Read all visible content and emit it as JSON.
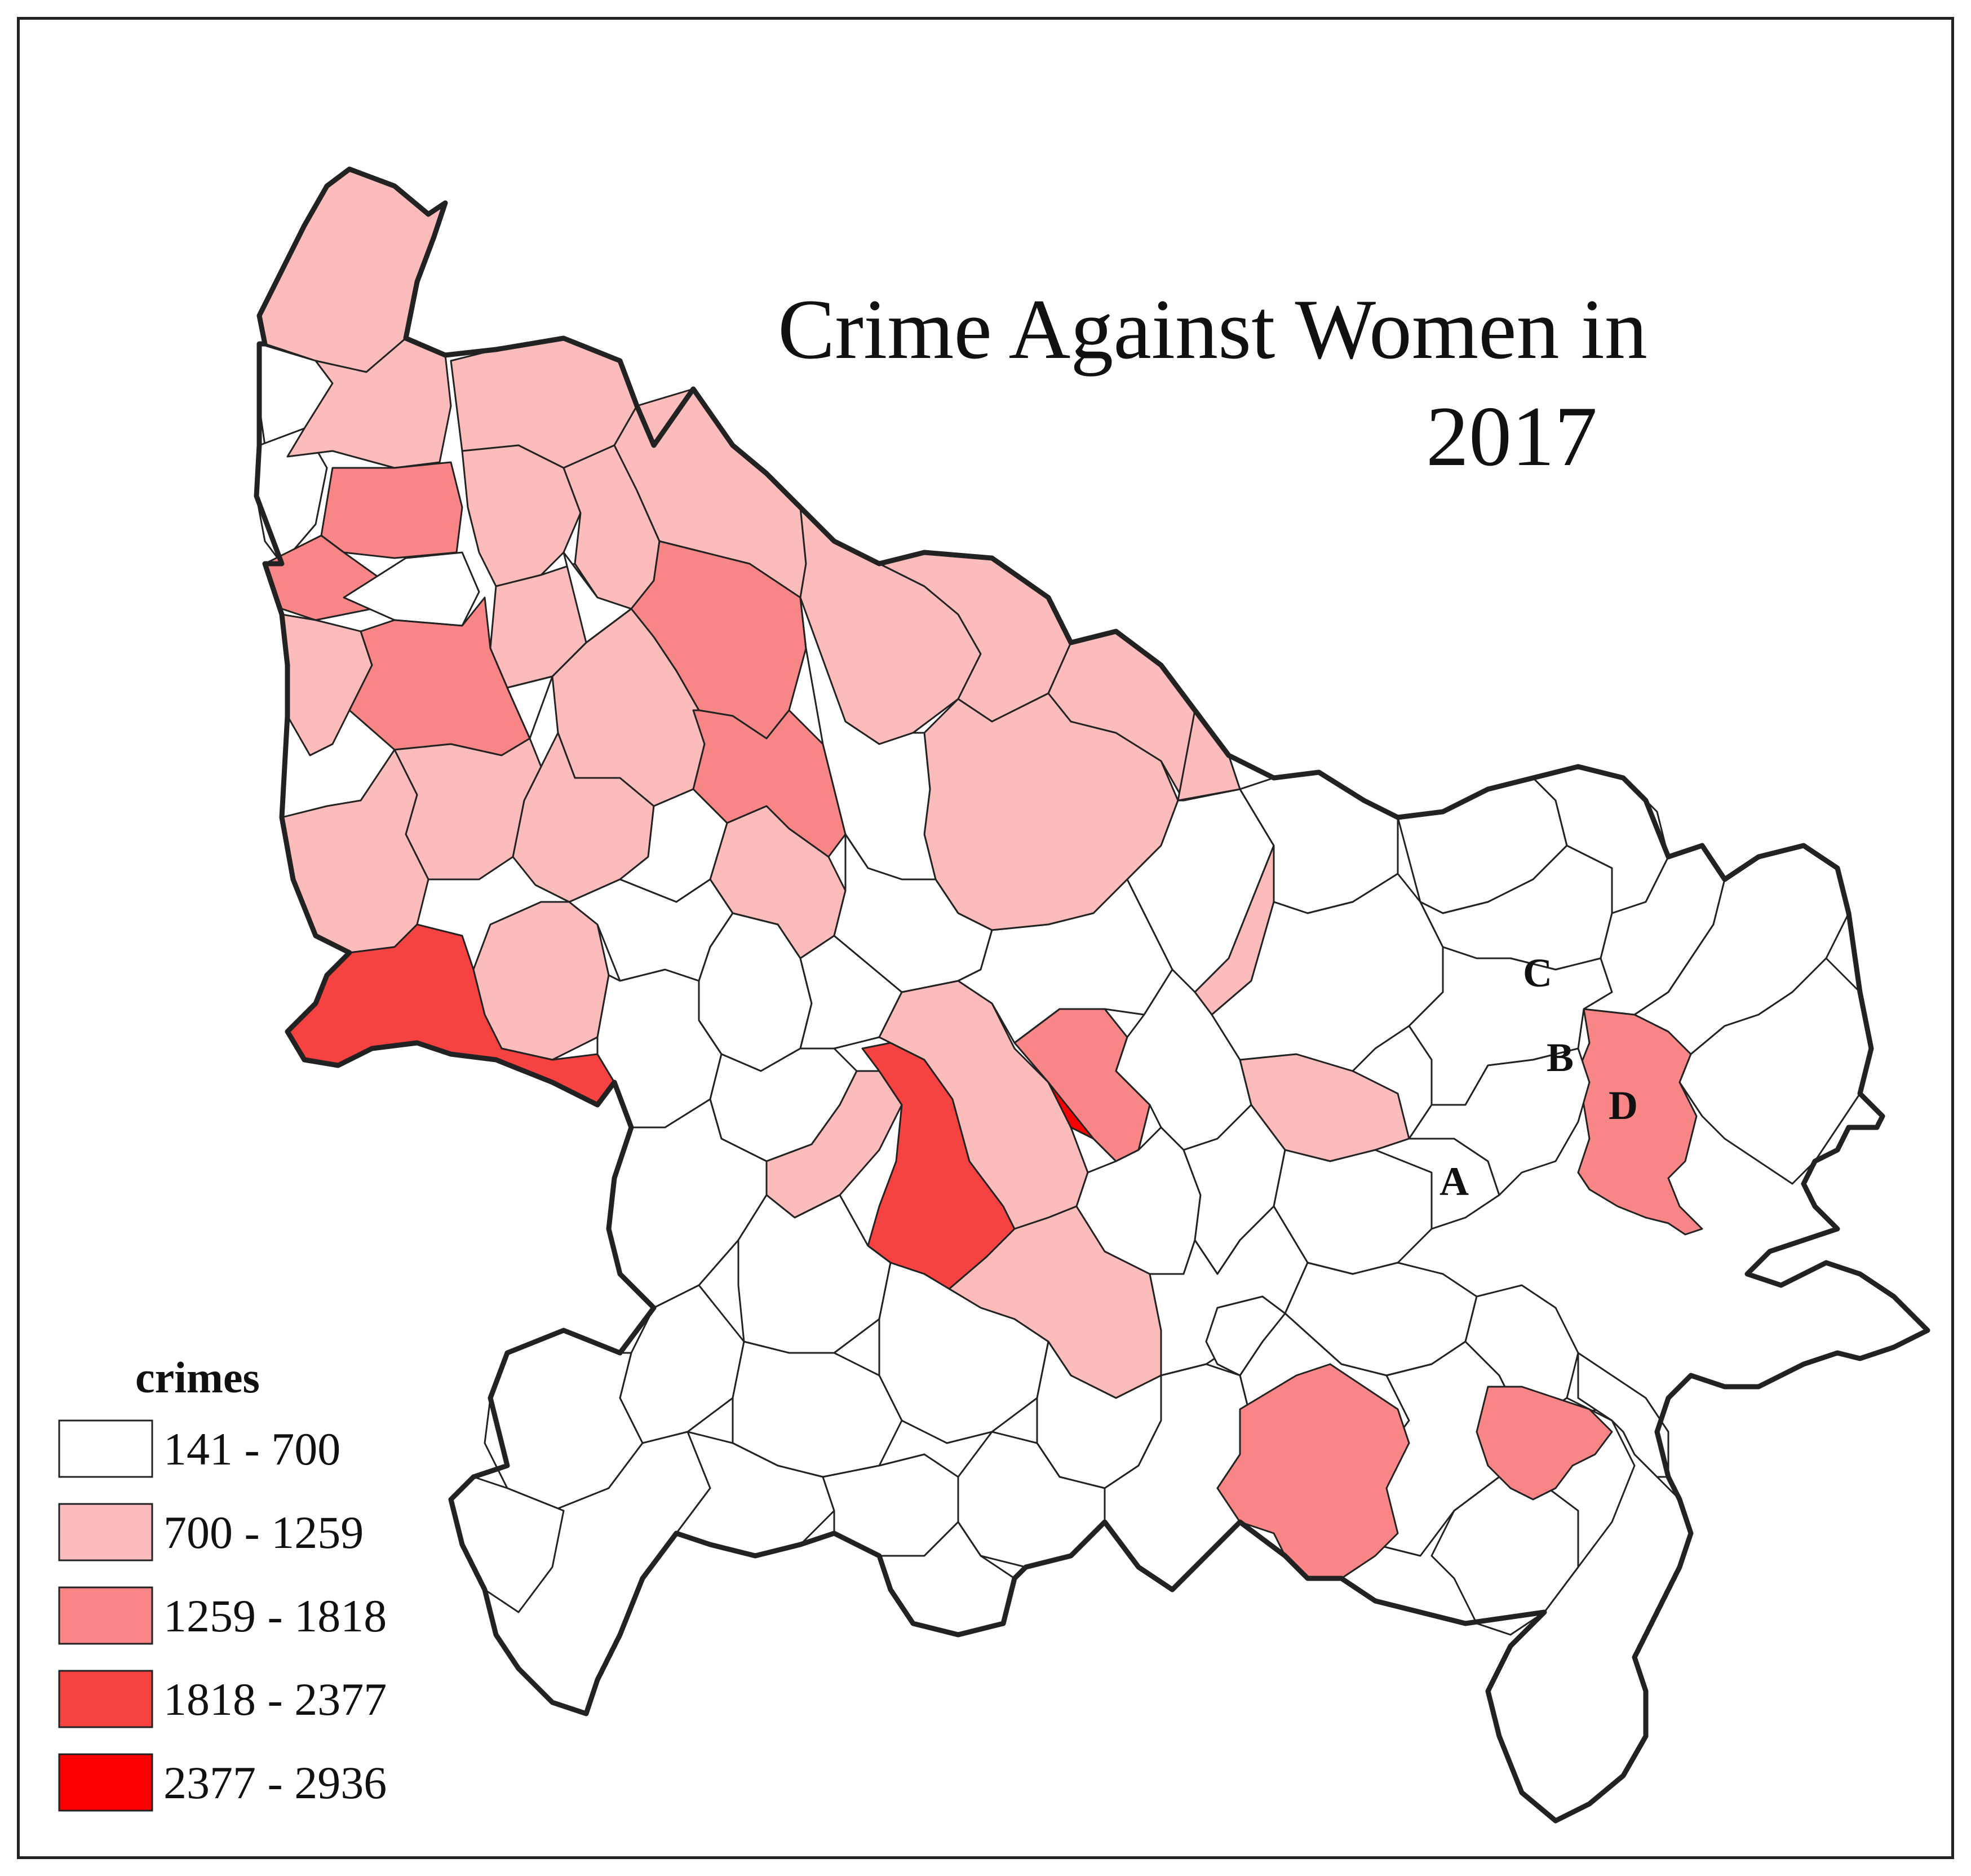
{
  "map": {
    "title_line1": "Crime Against Women in",
    "title_line2": "2017",
    "legend": {
      "title": "crimes",
      "classes": [
        {
          "label": "141 - 700",
          "color": "#ffffff"
        },
        {
          "label": "700 - 1259",
          "color": "#fcbcbc"
        },
        {
          "label": "1259 - 1818",
          "color": "#f98686"
        },
        {
          "label": "1818 - 2377",
          "color": "#f74242"
        },
        {
          "label": "2377 - 2936",
          "color": "#fb0000"
        }
      ]
    },
    "district_labels": [
      "A",
      "B",
      "C",
      "D"
    ],
    "districts": [
      {
        "class": 1
      },
      {
        "class": 0
      },
      {
        "class": 0
      },
      {
        "class": 1
      },
      {
        "class": 2
      },
      {
        "class": 2
      },
      {
        "class": 0
      },
      {
        "class": 1
      },
      {
        "class": 1
      },
      {
        "class": 1
      },
      {
        "class": 1
      },
      {
        "class": 2
      },
      {
        "class": 1
      },
      {
        "class": 2
      },
      {
        "class": 1
      },
      {
        "class": 1
      },
      {
        "class": 0
      },
      {
        "class": 1
      },
      {
        "class": 1
      },
      {
        "class": 2
      },
      {
        "class": 1
      },
      {
        "class": 1
      },
      {
        "class": 1
      },
      {
        "class": 1
      },
      {
        "class": 3
      },
      {
        "class": 1
      },
      {
        "class": 0
      },
      {
        "class": 0
      },
      {
        "class": 0
      },
      {
        "class": 0
      },
      {
        "class": 0
      },
      {
        "class": 0
      },
      {
        "class": 1
      },
      {
        "class": 3
      },
      {
        "class": 1
      },
      {
        "class": 4
      },
      {
        "class": 1
      },
      {
        "class": 1
      },
      {
        "class": 0
      },
      {
        "class": 0
      },
      {
        "class": 0
      },
      {
        "class": 0
      },
      {
        "class": 1
      },
      {
        "class": 0
      },
      {
        "class": 2
      },
      {
        "class": 0
      },
      {
        "class": 1
      },
      {
        "class": 1
      },
      {
        "class": 0
      },
      {
        "class": 0
      },
      {
        "class": 0
      },
      {
        "class": 0
      },
      {
        "class": 0
      },
      {
        "class": 0
      },
      {
        "class": 0
      },
      {
        "class": 2
      },
      {
        "class": 2
      },
      {
        "class": 0
      },
      {
        "class": 0
      },
      {
        "class": 0
      },
      {
        "class": 0
      },
      {
        "class": 0
      },
      {
        "class": 0
      },
      {
        "class": 0
      },
      {
        "class": 0
      }
    ]
  }
}
